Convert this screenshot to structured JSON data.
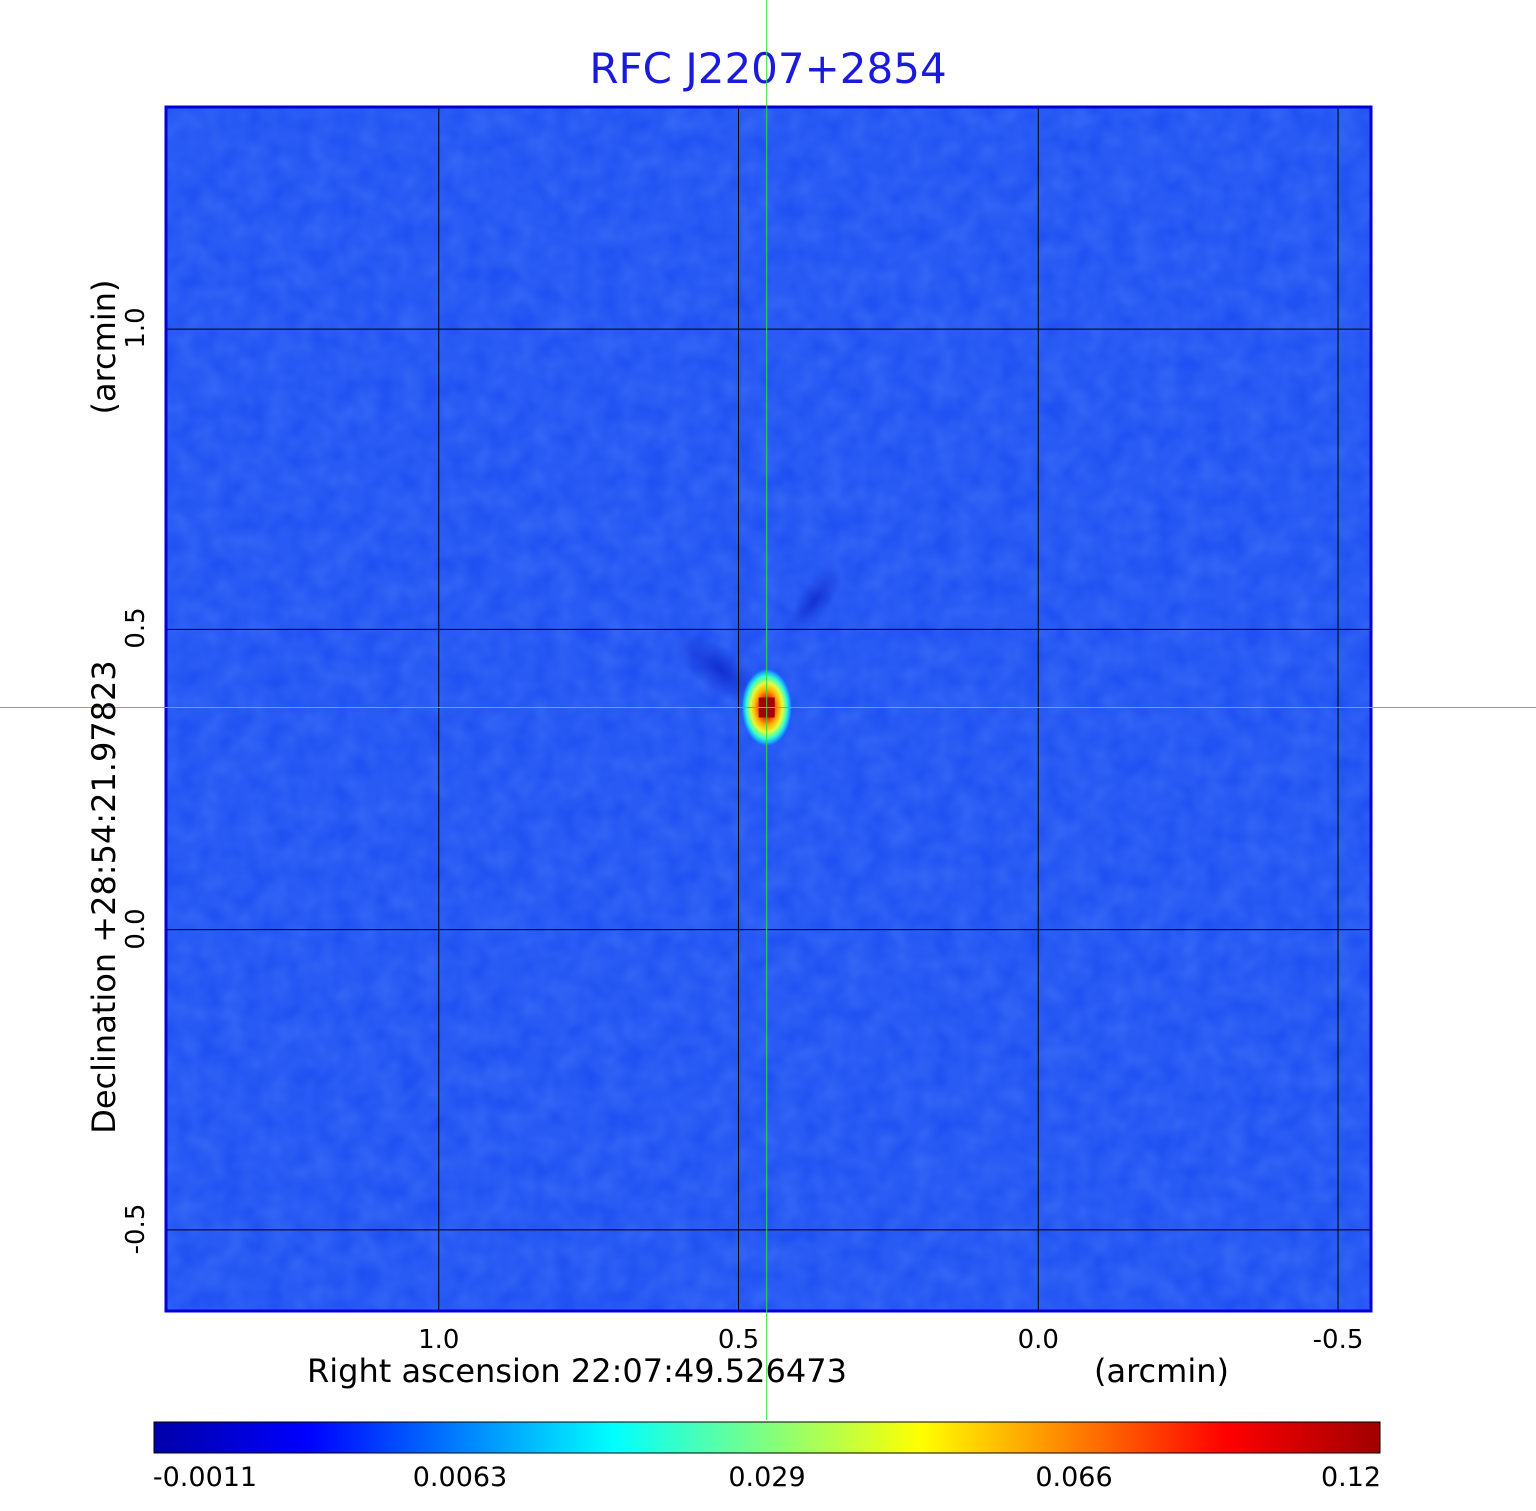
{
  "chart_data": {
    "type": "heatmap",
    "title": "RFC J2207+2854",
    "xlabel": "Right ascension  22:07:49.526473",
    "xunit": "(arcmin)",
    "ylabel": "Declination  +28:54:21.97823",
    "yunit": "(arcmin)",
    "x_ticks": [
      "1.0",
      "0.5",
      "0.0",
      "-0.5"
    ],
    "x_tick_values": [
      1.0,
      0.5,
      0.0,
      -0.5
    ],
    "y_ticks": [
      "1.0",
      "0.5",
      "0.0",
      "-0.5"
    ],
    "y_tick_values": [
      1.0,
      0.5,
      0.0,
      -0.5
    ],
    "xlim": [
      1.455,
      -0.555
    ],
    "ylim": [
      -0.635,
      1.37
    ],
    "grid": true,
    "crosshair": {
      "x": 0.453,
      "y": 0.37
    },
    "source": {
      "x": 0.453,
      "y": 0.37,
      "peak": 0.12
    },
    "colorbar": {
      "ticks": [
        "-0.0011",
        "0.0063",
        "0.029",
        "0.066",
        "0.12"
      ],
      "colormap": [
        "#0000a8",
        "#0000ff",
        "#0080ff",
        "#00ffff",
        "#80ff80",
        "#ffff00",
        "#ff8000",
        "#ff0000",
        "#a00000"
      ]
    },
    "background_color": "#1a4cf2",
    "frame_color": "#0000dd",
    "crosshair_color": "#33dd33"
  }
}
